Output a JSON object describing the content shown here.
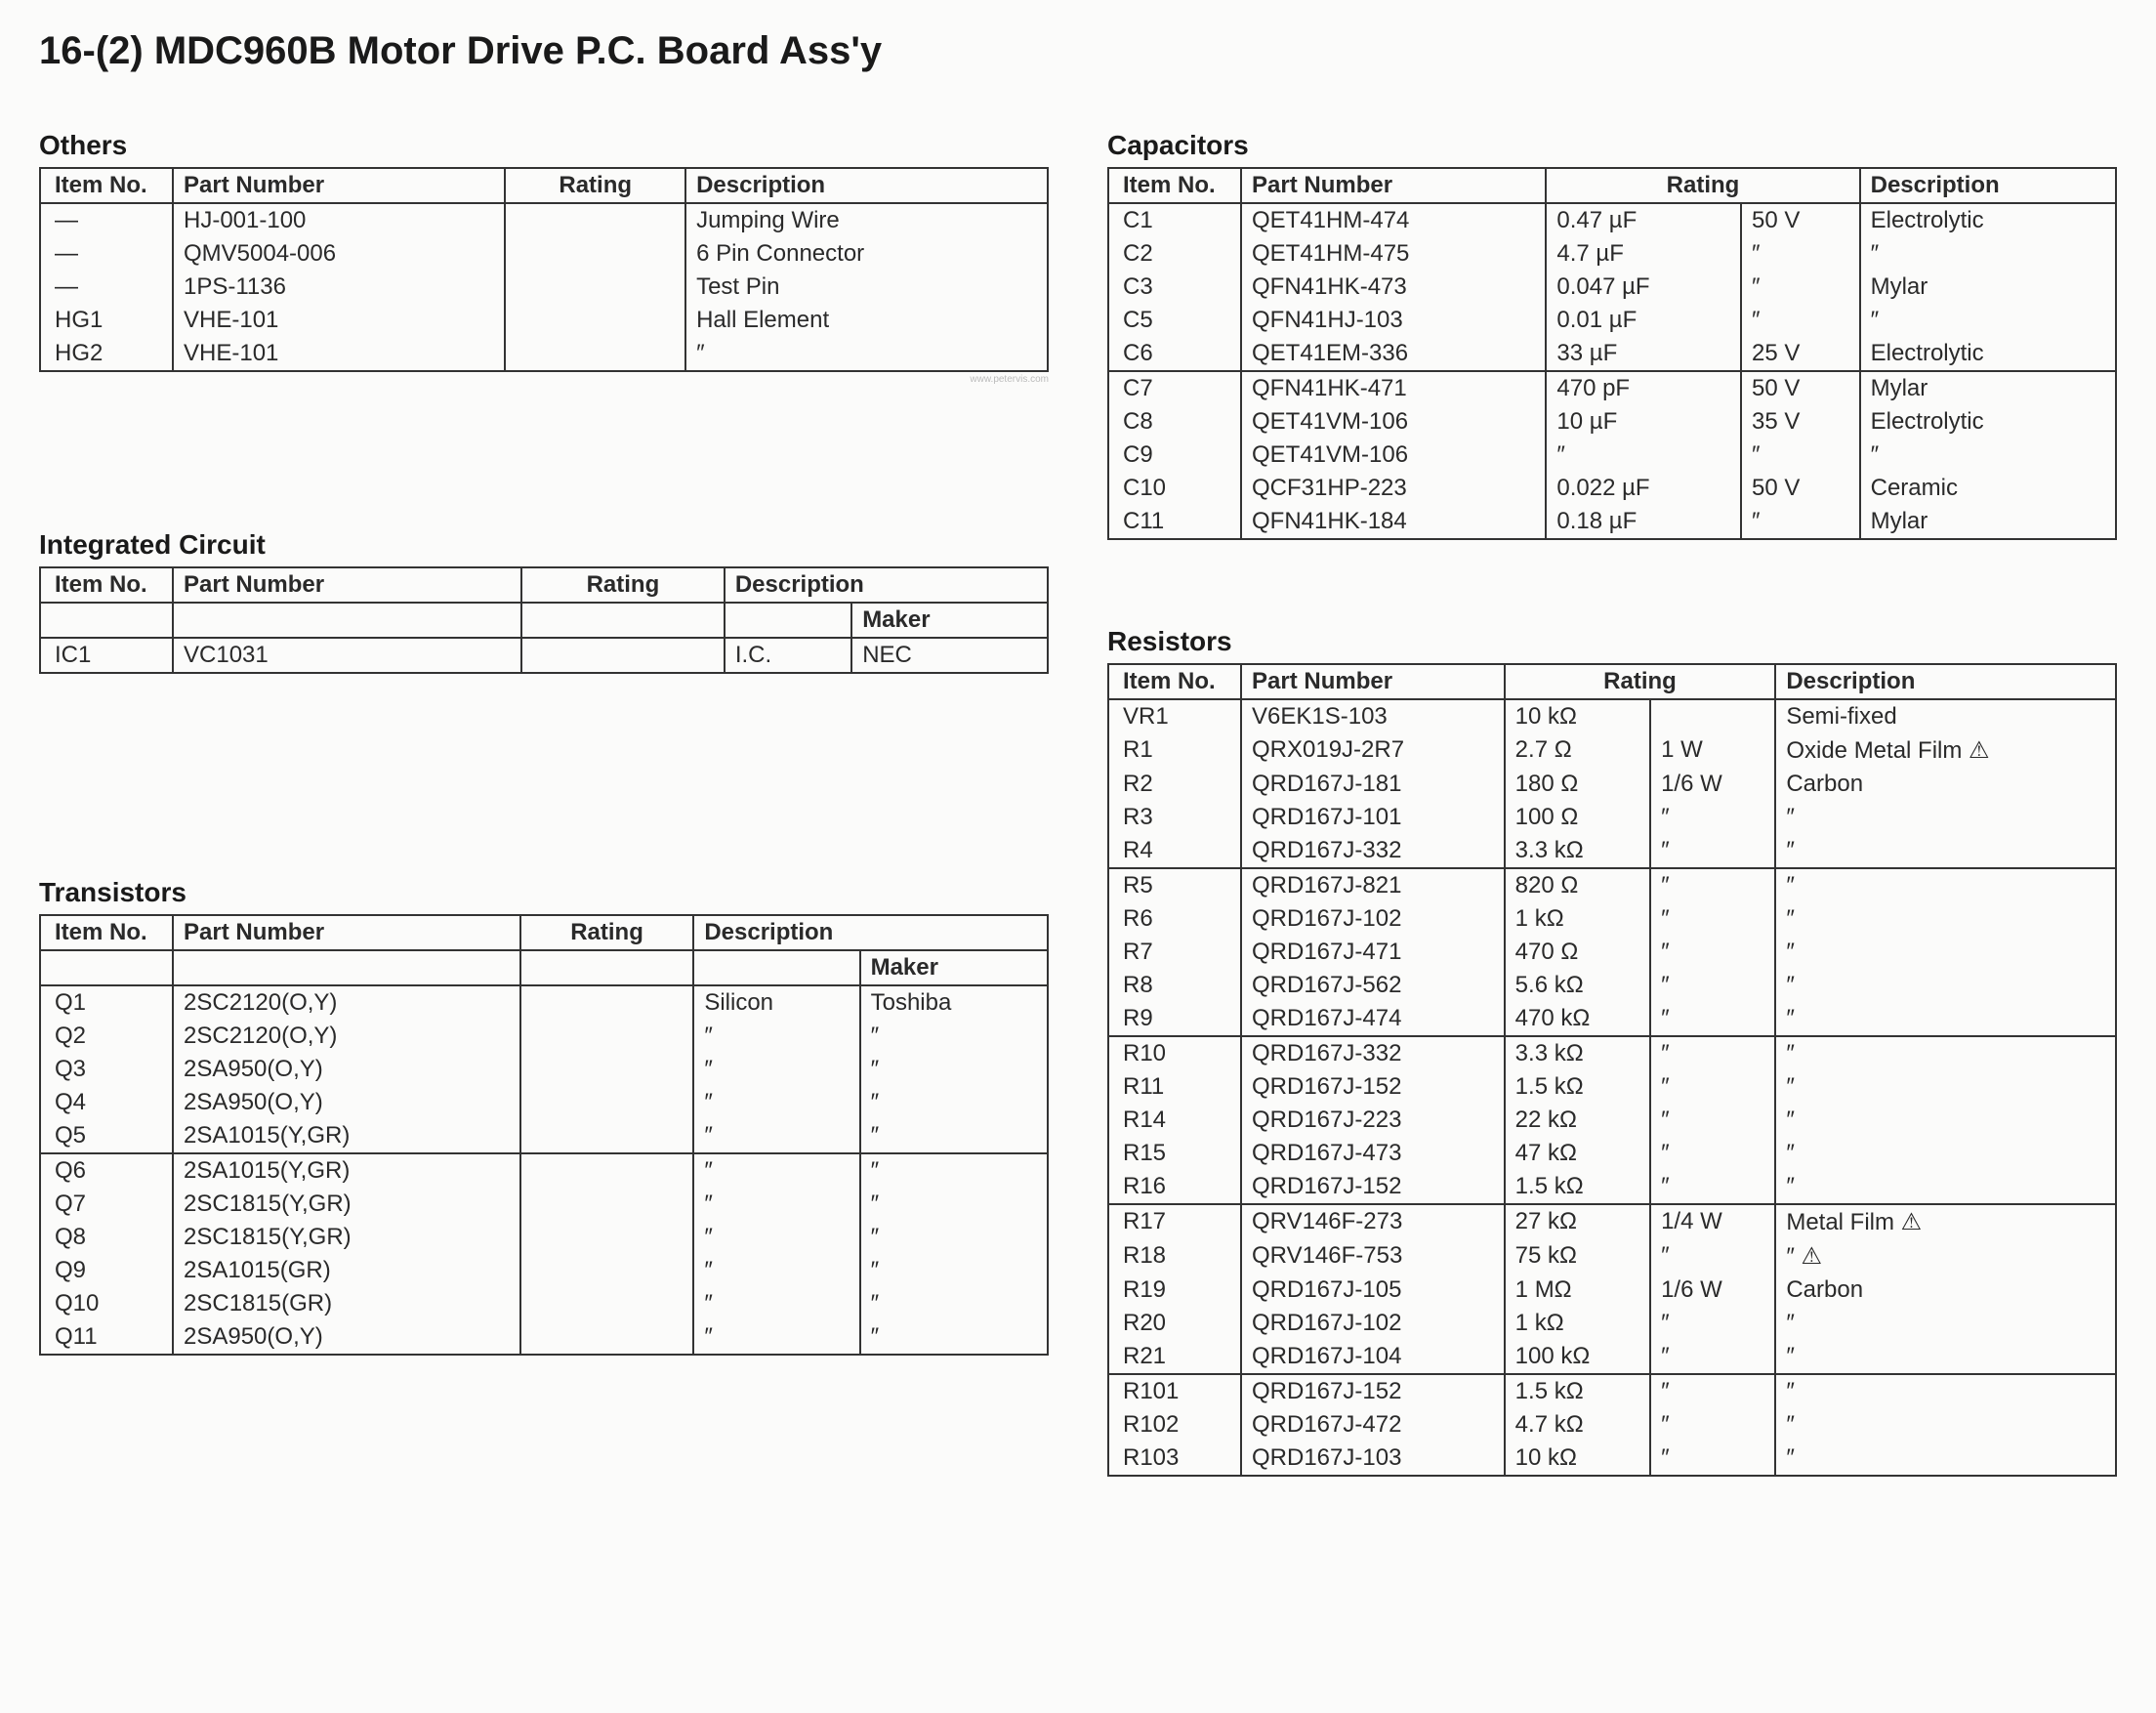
{
  "page_title": "16-(2) MDC960B Motor Drive P.C. Board Ass'y",
  "watermark": "www.petervis.com",
  "headers": {
    "item": "Item No.",
    "part": "Part Number",
    "rating": "Rating",
    "desc": "Description",
    "maker": "Maker"
  },
  "sections": {
    "others": {
      "title": "Others",
      "rows": [
        {
          "item": "—",
          "part": "HJ-001-100",
          "rating": "",
          "desc": "Jumping Wire"
        },
        {
          "item": "—",
          "part": "QMV5004-006",
          "rating": "",
          "desc": "6 Pin Connector"
        },
        {
          "item": "—",
          "part": "1PS-1136",
          "rating": "",
          "desc": "Test Pin"
        },
        {
          "item": "HG1",
          "part": "VHE-101",
          "rating": "",
          "desc": "Hall Element"
        },
        {
          "item": "HG2",
          "part": "VHE-101",
          "rating": "",
          "desc": "″"
        }
      ]
    },
    "ic": {
      "title": "Integrated Circuit",
      "rows": [
        {
          "item": "",
          "part": "",
          "rating": "",
          "desc": "",
          "maker": "Maker",
          "sep": true,
          "is_subheader": true
        },
        {
          "item": "IC1",
          "part": "VC1031",
          "rating": "",
          "desc": "I.C.",
          "maker": "NEC",
          "sep": true
        }
      ]
    },
    "transistors": {
      "title": "Transistors",
      "rows": [
        {
          "item": "",
          "part": "",
          "rating": "",
          "desc": "",
          "maker": "Maker",
          "sep": true,
          "is_subheader": true
        },
        {
          "item": "Q1",
          "part": "2SC2120(O,Y)",
          "rating": "",
          "desc": "Silicon",
          "maker": "Toshiba",
          "sep": true
        },
        {
          "item": "Q2",
          "part": "2SC2120(O,Y)",
          "rating": "",
          "desc": "″",
          "maker": "″"
        },
        {
          "item": "Q3",
          "part": "2SA950(O,Y)",
          "rating": "",
          "desc": "″",
          "maker": "″"
        },
        {
          "item": "Q4",
          "part": "2SA950(O,Y)",
          "rating": "",
          "desc": "″",
          "maker": "″"
        },
        {
          "item": "Q5",
          "part": "2SA1015(Y,GR)",
          "rating": "",
          "desc": "″",
          "maker": "″"
        },
        {
          "item": "Q6",
          "part": "2SA1015(Y,GR)",
          "rating": "",
          "desc": "″",
          "maker": "″",
          "sep": true
        },
        {
          "item": "Q7",
          "part": "2SC1815(Y,GR)",
          "rating": "",
          "desc": "″",
          "maker": "″"
        },
        {
          "item": "Q8",
          "part": "2SC1815(Y,GR)",
          "rating": "",
          "desc": "″",
          "maker": "″"
        },
        {
          "item": "Q9",
          "part": "2SA1015(GR)",
          "rating": "",
          "desc": "″",
          "maker": "″"
        },
        {
          "item": "Q10",
          "part": "2SC1815(GR)",
          "rating": "",
          "desc": "″",
          "maker": "″"
        },
        {
          "item": "Q11",
          "part": "2SA950(O,Y)",
          "rating": "",
          "desc": "″",
          "maker": "″"
        }
      ]
    },
    "capacitors": {
      "title": "Capacitors",
      "rows": [
        {
          "item": "C1",
          "part": "QET41HM-474",
          "r1": "0.47 µF",
          "r2": "50 V",
          "desc": "Electrolytic"
        },
        {
          "item": "C2",
          "part": "QET41HM-475",
          "r1": "4.7 µF",
          "r2": "″",
          "desc": "″"
        },
        {
          "item": "C3",
          "part": "QFN41HK-473",
          "r1": "0.047 µF",
          "r2": "″",
          "desc": "Mylar"
        },
        {
          "item": "C5",
          "part": "QFN41HJ-103",
          "r1": "0.01 µF",
          "r2": "″",
          "desc": "″"
        },
        {
          "item": "C6",
          "part": "QET41EM-336",
          "r1": "33 µF",
          "r2": "25 V",
          "desc": "Electrolytic"
        },
        {
          "item": "C7",
          "part": "QFN41HK-471",
          "r1": "470 pF",
          "r2": "50 V",
          "desc": "Mylar",
          "sep": true
        },
        {
          "item": "C8",
          "part": "QET41VM-106",
          "r1": "10 µF",
          "r2": "35 V",
          "desc": "Electrolytic"
        },
        {
          "item": "C9",
          "part": "QET41VM-106",
          "r1": "″",
          "r2": "″",
          "desc": "″"
        },
        {
          "item": "C10",
          "part": "QCF31HP-223",
          "r1": "0.022 µF",
          "r2": "50 V",
          "desc": "Ceramic"
        },
        {
          "item": "C11",
          "part": "QFN41HK-184",
          "r1": "0.18 µF",
          "r2": "″",
          "desc": "Mylar"
        }
      ]
    },
    "resistors": {
      "title": "Resistors",
      "rows": [
        {
          "item": "VR1",
          "part": "V6EK1S-103",
          "r1": "10 kΩ",
          "r2": "",
          "desc": "Semi-fixed"
        },
        {
          "item": "R1",
          "part": "QRX019J-2R7",
          "r1": "2.7 Ω",
          "r2": "1 W",
          "desc": "Oxide Metal Film ⚠"
        },
        {
          "item": "R2",
          "part": "QRD167J-181",
          "r1": "180 Ω",
          "r2": "1/6 W",
          "desc": "Carbon"
        },
        {
          "item": "R3",
          "part": "QRD167J-101",
          "r1": "100 Ω",
          "r2": "″",
          "desc": "″"
        },
        {
          "item": "R4",
          "part": "QRD167J-332",
          "r1": "3.3 kΩ",
          "r2": "″",
          "desc": "″"
        },
        {
          "item": "R5",
          "part": "QRD167J-821",
          "r1": "820 Ω",
          "r2": "″",
          "desc": "″",
          "sep": true
        },
        {
          "item": "R6",
          "part": "QRD167J-102",
          "r1": "1 kΩ",
          "r2": "″",
          "desc": "″"
        },
        {
          "item": "R7",
          "part": "QRD167J-471",
          "r1": "470 Ω",
          "r2": "″",
          "desc": "″"
        },
        {
          "item": "R8",
          "part": "QRD167J-562",
          "r1": "5.6 kΩ",
          "r2": "″",
          "desc": "″"
        },
        {
          "item": "R9",
          "part": "QRD167J-474",
          "r1": "470 kΩ",
          "r2": "″",
          "desc": "″"
        },
        {
          "item": "R10",
          "part": "QRD167J-332",
          "r1": "3.3 kΩ",
          "r2": "″",
          "desc": "″",
          "sep": true
        },
        {
          "item": "R11",
          "part": "QRD167J-152",
          "r1": "1.5 kΩ",
          "r2": "″",
          "desc": "″"
        },
        {
          "item": "R14",
          "part": "QRD167J-223",
          "r1": "22 kΩ",
          "r2": "″",
          "desc": "″"
        },
        {
          "item": "R15",
          "part": "QRD167J-473",
          "r1": "47 kΩ",
          "r2": "″",
          "desc": "″"
        },
        {
          "item": "R16",
          "part": "QRD167J-152",
          "r1": "1.5 kΩ",
          "r2": "″",
          "desc": "″"
        },
        {
          "item": "R17",
          "part": "QRV146F-273",
          "r1": "27 kΩ",
          "r2": "1/4 W",
          "desc": "Metal Film ⚠",
          "sep": true
        },
        {
          "item": "R18",
          "part": "QRV146F-753",
          "r1": "75 kΩ",
          "r2": "″",
          "desc": "″        ⚠"
        },
        {
          "item": "R19",
          "part": "QRD167J-105",
          "r1": "1 MΩ",
          "r2": "1/6 W",
          "desc": "Carbon"
        },
        {
          "item": "R20",
          "part": "QRD167J-102",
          "r1": "1 kΩ",
          "r2": "″",
          "desc": "″"
        },
        {
          "item": "R21",
          "part": "QRD167J-104",
          "r1": "100 kΩ",
          "r2": "″",
          "desc": "″"
        },
        {
          "item": "R101",
          "part": "QRD167J-152",
          "r1": "1.5 kΩ",
          "r2": "″",
          "desc": "″",
          "sep": true
        },
        {
          "item": "R102",
          "part": "QRD167J-472",
          "r1": "4.7 kΩ",
          "r2": "″",
          "desc": "″"
        },
        {
          "item": "R103",
          "part": "QRD167J-103",
          "r1": "10 kΩ",
          "r2": "″",
          "desc": "″"
        }
      ]
    }
  }
}
